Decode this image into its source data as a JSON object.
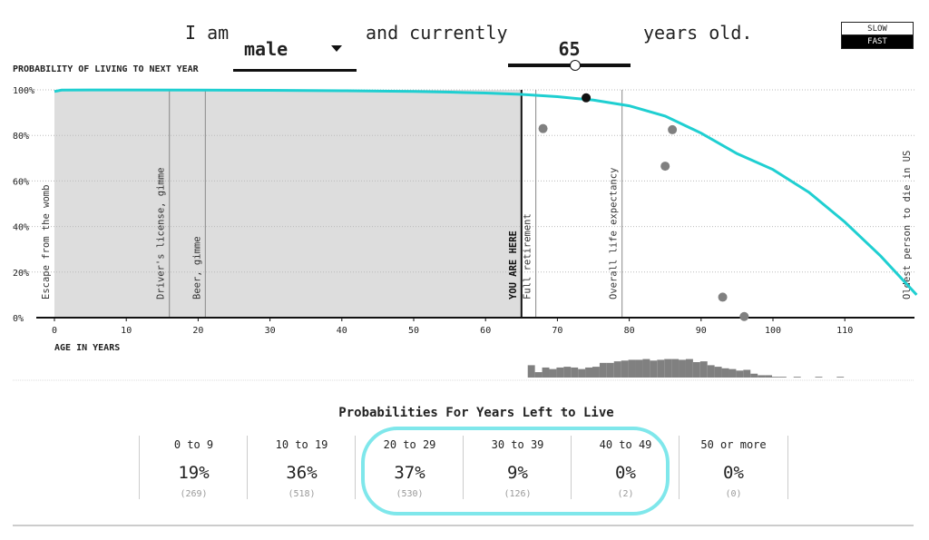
{
  "sentence": {
    "prefix": "I am",
    "gender": "male",
    "middle": "and currently",
    "age": "65",
    "suffix": "years old."
  },
  "speed": {
    "slow": "SLOW",
    "fast": "FAST"
  },
  "colors": {
    "curve": "#1fcfd1",
    "shade": "#dddddd",
    "dots": "#808080",
    "highlight": "#7fe7eb"
  },
  "chart_data": [
    {
      "type": "line",
      "title": "PROBABILITY OF LIVING TO NEXT YEAR",
      "xlabel": "AGE IN YEARS",
      "xlim": [
        0,
        120
      ],
      "ylim": [
        0,
        100
      ],
      "x_ticks": [
        0,
        10,
        20,
        30,
        40,
        50,
        60,
        70,
        80,
        90,
        100,
        110
      ],
      "y_ticks": [
        "0%",
        "20%",
        "40%",
        "60%",
        "80%",
        "100%"
      ],
      "grid": true,
      "series": [
        {
          "x": [
            0,
            1,
            5,
            10,
            20,
            30,
            40,
            50,
            55,
            60,
            65,
            70,
            75,
            80,
            85,
            90,
            95,
            100,
            105,
            110,
            115,
            120
          ],
          "y": [
            99.3,
            99.9,
            99.95,
            99.95,
            99.9,
            99.8,
            99.6,
            99.3,
            99.0,
            98.6,
            98.0,
            97.0,
            95.5,
            93.0,
            88.5,
            81.0,
            72.0,
            65.0,
            55.0,
            42.0,
            27.0,
            10.0
          ]
        }
      ],
      "current_age": 65,
      "current_marker": {
        "x": 74,
        "y": 96.5
      },
      "simulated_deaths": [
        {
          "x": 68,
          "y": 83
        },
        {
          "x": 85,
          "y": 66.5
        },
        {
          "x": 86,
          "y": 82.5
        },
        {
          "x": 93,
          "y": 9
        },
        {
          "x": 96,
          "y": 0.5
        }
      ],
      "milestones": [
        {
          "age": 0,
          "label": "Escape from the womb"
        },
        {
          "age": 16,
          "label": "Driver's license, gimme"
        },
        {
          "age": 21,
          "label": "Beer, gimme"
        },
        {
          "age": 65,
          "label": "YOU ARE HERE"
        },
        {
          "age": 67,
          "label": "Full retirement"
        },
        {
          "age": 79,
          "label": "Overall life expectancy"
        },
        {
          "age": 119,
          "label": "Oldest person to die in US"
        }
      ]
    },
    {
      "type": "bar",
      "title": "",
      "x_start": 66,
      "values": [
        16,
        7,
        13,
        11,
        13,
        14,
        13,
        11,
        13,
        14,
        19,
        19,
        21,
        22,
        23,
        23,
        24,
        22,
        23,
        24,
        24,
        23,
        24,
        20,
        21,
        16,
        14,
        12,
        11,
        9,
        10,
        5,
        3,
        3,
        1,
        1,
        0,
        1,
        0,
        0,
        1,
        0,
        0,
        1
      ]
    }
  ],
  "years_left": {
    "title": "Probabilities For Years Left to Live",
    "bins": [
      {
        "range": "0 to 9",
        "pct": "19%",
        "count": "(269)"
      },
      {
        "range": "10 to 19",
        "pct": "36%",
        "count": "(518)"
      },
      {
        "range": "20 to 29",
        "pct": "37%",
        "count": "(530)"
      },
      {
        "range": "30 to 39",
        "pct": "9%",
        "count": "(126)"
      },
      {
        "range": "40 to 49",
        "pct": "0%",
        "count": "(2)"
      },
      {
        "range": "50 or more",
        "pct": "0%",
        "count": "(0)"
      }
    ]
  }
}
